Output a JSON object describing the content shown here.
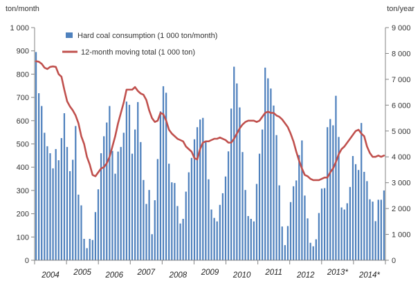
{
  "chart_data": {
    "type": "bar",
    "left_unit": "ton/month",
    "right_unit": "ton/year",
    "left_ylim": [
      0,
      1000
    ],
    "left_ticks": [
      "0",
      "100",
      "200",
      "300",
      "400",
      "500",
      "600",
      "700",
      "800",
      "900",
      "1 000"
    ],
    "right_ylim": [
      0,
      9000
    ],
    "right_ticks": [
      "0",
      "1 000",
      "2 000",
      "3 000",
      "4 000",
      "5 000",
      "6 000",
      "7 000",
      "8 000",
      "9 000"
    ],
    "years": [
      "2004",
      "2005",
      "2006",
      "2007",
      "2008",
      "2009",
      "2010",
      "2011",
      "2012",
      "2013*",
      "2014*"
    ],
    "grid": false,
    "legend_position": "top-left",
    "series": [
      {
        "name": "Hard coal consumption (1 000 ton/month)",
        "type": "bar",
        "axis": "left",
        "color": "#4F81BD",
        "values": [
          895,
          718,
          663,
          548,
          490,
          460,
          395,
          478,
          430,
          525,
          632,
          487,
          383,
          432,
          577,
          282,
          236,
          92,
          52,
          92,
          87,
          207,
          305,
          460,
          533,
          592,
          663,
          470,
          372,
          467,
          487,
          548,
          682,
          668,
          458,
          562,
          680,
          508,
          345,
          242,
          302,
          112,
          258,
          435,
          640,
          748,
          720,
          415,
          335,
          332,
          233,
          158,
          178,
          295,
          378,
          440,
          520,
          572,
          605,
          612,
          512,
          348,
          218,
          182,
          167,
          238,
          288,
          360,
          468,
          652,
          832,
          760,
          657,
          465,
          302,
          190,
          178,
          167,
          328,
          458,
          562,
          828,
          782,
          738,
          665,
          538,
          322,
          145,
          65,
          147,
          250,
          318,
          343,
          452,
          515,
          278,
          180,
          75,
          60,
          90,
          203,
          308,
          310,
          572,
          607,
          580,
          707,
          530,
          227,
          218,
          245,
          315,
          448,
          413,
          388,
          590,
          380,
          340,
          262,
          252,
          168,
          260,
          260,
          300
        ],
        "comment": "monthly values Jan 2004 through Dec 2014 read off the left axis"
      },
      {
        "name": "12-month moving total (1 000 ton)",
        "type": "line",
        "axis": "right",
        "color": "#C0504D",
        "values": [
          7700,
          7680,
          7600,
          7450,
          7400,
          7480,
          7500,
          7480,
          7200,
          7100,
          6600,
          6150,
          5950,
          5800,
          5600,
          5300,
          4800,
          4500,
          4000,
          3700,
          3300,
          3250,
          3400,
          3550,
          3600,
          3750,
          4000,
          4400,
          4800,
          5300,
          5700,
          6100,
          6600,
          6600,
          6600,
          6700,
          6550,
          6450,
          6400,
          6200,
          5800,
          5500,
          5350,
          5400,
          5700,
          5650,
          5400,
          5050,
          4900,
          4800,
          4700,
          4650,
          4600,
          4400,
          4300,
          4200,
          3950,
          3900,
          4300,
          4550,
          4600,
          4600,
          4650,
          4700,
          4700,
          4750,
          4700,
          4650,
          4550,
          4550,
          4700,
          4900,
          5100,
          5250,
          5350,
          5400,
          5400,
          5400,
          5350,
          5400,
          5550,
          5700,
          5750,
          5700,
          5700,
          5600,
          5550,
          5450,
          5300,
          5150,
          4900,
          4600,
          4200,
          3850,
          3550,
          3300,
          3250,
          3150,
          3100,
          3100,
          3100,
          3150,
          3200,
          3200,
          3400,
          3550,
          3800,
          4100,
          4300,
          4400,
          4550,
          4700,
          4850,
          5000,
          5050,
          4900,
          4800,
          4400,
          4150,
          4000,
          4000,
          4050,
          4000,
          4050
        ],
        "comment": "monthly 12-month moving total Jan 2004 through Dec 2014 read off the right axis"
      }
    ]
  }
}
